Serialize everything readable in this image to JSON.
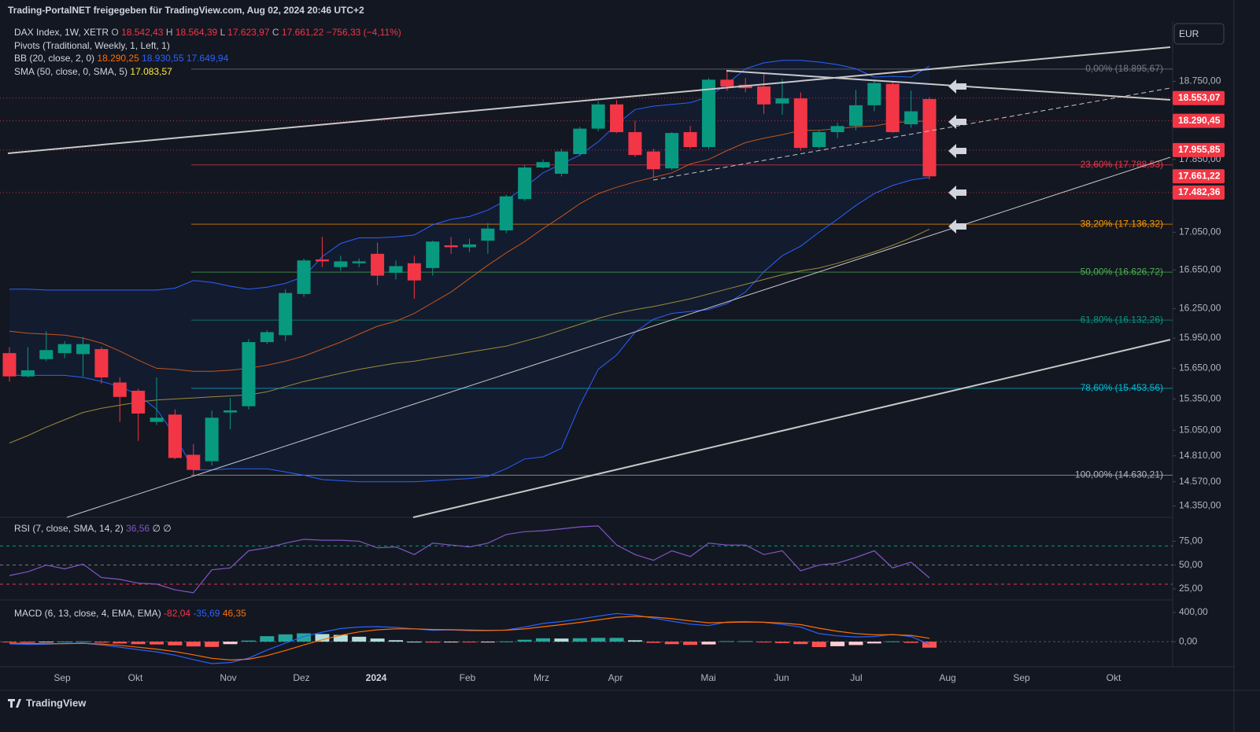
{
  "header": {
    "shared_by": "Trading-PortalNET freigegeben für TradingView.com, Aug 02, 2024 20:46 UTC+2",
    "currency": "EUR",
    "brand": "TradingView"
  },
  "legend": {
    "symbol": "DAX Index, 1W, XETR",
    "ohlc": [
      {
        "key": "O",
        "value": "18.542,43"
      },
      {
        "key": "H",
        "value": "18.564,39"
      },
      {
        "key": "L",
        "value": "17.623,97"
      },
      {
        "key": "C",
        "value": "17.661,22"
      }
    ],
    "change": "−756,33 (−4,11%)",
    "pivots": "Pivots (Traditional, Weekly, 1, Left, 1)",
    "bb": {
      "name": "BB (20, close, 2, 0)",
      "values": [
        "18.290,25",
        "18.930,55",
        "17.649,94"
      ]
    },
    "sma": {
      "name": "SMA (50, close, 0, SMA, 5)",
      "value": "17.083,57"
    }
  },
  "x_labels": [
    "Sep",
    "Okt",
    "Nov",
    "Dez",
    "2024",
    "Feb",
    "Mrz",
    "Apr",
    "Mai",
    "Jun",
    "Jul",
    "Aug",
    "Sep",
    "Okt"
  ],
  "chart_data": [
    {
      "type": "candlestick",
      "log": true,
      "ylim": [
        14247,
        19474
      ],
      "yticks": [
        {
          "value": 18750,
          "label": "18.750,00"
        },
        {
          "value": 17850,
          "label": "17.850,00"
        },
        {
          "value": 17050,
          "label": "17.050,00"
        },
        {
          "value": 16650,
          "label": "16.650,00"
        },
        {
          "value": 16250,
          "label": "16.250,00"
        },
        {
          "value": 15950,
          "label": "15.950,00"
        },
        {
          "value": 15650,
          "label": "15.650,00"
        },
        {
          "value": 15350,
          "label": "15.350,00"
        },
        {
          "value": 15050,
          "label": "15.050,00"
        },
        {
          "value": 14810,
          "label": "14.810,00"
        },
        {
          "value": 14570,
          "label": "14.570,00"
        },
        {
          "value": 14350,
          "label": "14.350,00"
        }
      ],
      "up_color": "#089981",
      "down_color": "#f23645",
      "open": [
        15800,
        15570,
        15740,
        15800,
        15790,
        15840,
        15510,
        15430,
        15130,
        15200,
        14820,
        14760,
        15220,
        15280,
        15910,
        15980,
        16400,
        16760,
        16680,
        16720,
        16820,
        16620,
        16720,
        16670,
        16910,
        16890,
        16960,
        17070,
        17410,
        17760,
        17690,
        17910,
        18200,
        18480,
        18160,
        17940,
        17750,
        18160,
        17990,
        18770,
        18710,
        18690,
        18490,
        18550,
        17990,
        18160,
        18230,
        18470,
        18720,
        18250,
        18542.43
      ],
      "high": [
        15860,
        15860,
        16020,
        15920,
        15960,
        15860,
        15560,
        15450,
        15560,
        15250,
        14920,
        15240,
        15360,
        15940,
        16030,
        16450,
        16770,
        17000,
        16800,
        16770,
        16940,
        16750,
        16800,
        16960,
        17000,
        16980,
        17150,
        17460,
        17790,
        17850,
        17970,
        18220,
        18520,
        18530,
        18290,
        17970,
        18160,
        18230,
        18790,
        18870,
        18790,
        18840,
        18780,
        18620,
        18180,
        18270,
        18650,
        18760,
        18750,
        18640,
        18564.39
      ],
      "low": [
        15520,
        15560,
        15720,
        15750,
        15570,
        15500,
        15130,
        14950,
        15100,
        14780,
        14630,
        14720,
        15060,
        15250,
        15890,
        15920,
        16370,
        16680,
        16640,
        16680,
        16490,
        16550,
        16350,
        16590,
        16820,
        16840,
        16820,
        17040,
        17390,
        17750,
        17660,
        17890,
        18170,
        18150,
        17880,
        17650,
        17730,
        17970,
        17970,
        18640,
        18620,
        18370,
        18360,
        17950,
        17970,
        18090,
        18180,
        18400,
        18150,
        18210,
        17623.97
      ],
      "close": [
        15570,
        15630,
        15830,
        15890,
        15890,
        15560,
        15370,
        15210,
        15170,
        14790,
        14680,
        15170,
        15240,
        15910,
        16010,
        16410,
        16750,
        16740,
        16740,
        16740,
        16590,
        16690,
        16540,
        16950,
        16890,
        16920,
        17090,
        17440,
        17760,
        17820,
        17940,
        18200,
        18480,
        18160,
        17900,
        17740,
        18150,
        17990,
        18770,
        18690,
        18670,
        18480,
        18550,
        17980,
        18160,
        18230,
        18470,
        18730,
        18160,
        18400,
        17661.22
      ],
      "last_price_label": "17.661,22",
      "series": [
        {
          "name": "BB upper",
          "color": "#2962ff",
          "values": [
            16450,
            16450,
            16440,
            16440,
            16440,
            16440,
            16440,
            16440,
            16440,
            16460,
            16540,
            16520,
            16480,
            16450,
            16470,
            16510,
            16580,
            16790,
            16930,
            16990,
            16990,
            17000,
            17020,
            17130,
            17190,
            17220,
            17290,
            17400,
            17540,
            17700,
            17800,
            17900,
            18050,
            18250,
            18420,
            18460,
            18480,
            18500,
            18570,
            18720,
            18900,
            18970,
            19000,
            19000,
            18980,
            18950,
            18900,
            18800,
            18810,
            18800,
            18930.55
          ]
        },
        {
          "name": "BB basis",
          "color": "#c2571a",
          "values": [
            16020,
            16000,
            15990,
            15980,
            15950,
            15900,
            15820,
            15730,
            15650,
            15640,
            15620,
            15620,
            15630,
            15650,
            15680,
            15720,
            15770,
            15840,
            15910,
            15990,
            16070,
            16120,
            16200,
            16310,
            16420,
            16560,
            16700,
            16830,
            16950,
            17090,
            17220,
            17360,
            17470,
            17540,
            17600,
            17650,
            17700,
            17800,
            17850,
            17950,
            18040,
            18090,
            18130,
            18180,
            18180,
            18200,
            18220,
            18230,
            18270,
            18280,
            18290.25
          ]
        },
        {
          "name": "BB lower",
          "color": "#2962ff",
          "values": [
            15580,
            15580,
            15580,
            15580,
            15560,
            15520,
            15470,
            15390,
            15250,
            15000,
            14680,
            14680,
            14690,
            14690,
            14690,
            14660,
            14630,
            14590,
            14580,
            14570,
            14570,
            14570,
            14570,
            14580,
            14590,
            14600,
            14620,
            14690,
            14780,
            14800,
            14880,
            15290,
            15640,
            15780,
            16010,
            16140,
            16200,
            16220,
            16240,
            16300,
            16420,
            16630,
            16800,
            16900,
            17050,
            17190,
            17340,
            17470,
            17560,
            17620,
            17649.94
          ]
        },
        {
          "name": "SMA",
          "color": "#9c8b3a",
          "values": [
            14930,
            15000,
            15080,
            15150,
            15220,
            15260,
            15290,
            15320,
            15340,
            15350,
            15360,
            15370,
            15380,
            15390,
            15420,
            15470,
            15520,
            15560,
            15600,
            15640,
            15670,
            15700,
            15720,
            15750,
            15780,
            15810,
            15840,
            15870,
            15920,
            15970,
            16030,
            16090,
            16150,
            16200,
            16240,
            16270,
            16310,
            16350,
            16400,
            16450,
            16500,
            16550,
            16600,
            16640,
            16670,
            16720,
            16780,
            16840,
            16910,
            16990,
            17083.57
          ]
        }
      ],
      "pivots": [
        {
          "value": 18553.07,
          "label": "18.553,07"
        },
        {
          "value": 18290.45,
          "label": "18.290,45"
        },
        {
          "value": 17955.85,
          "label": "17.955,85"
        },
        {
          "value": 17482.36,
          "label": "17.482,36"
        }
      ],
      "fib": [
        {
          "value": 18895.67,
          "label": "0,00% (18.895,67)",
          "color": "#787b86"
        },
        {
          "value": 17788.53,
          "label": "23,60% (17.788,53)",
          "color": "#f23645"
        },
        {
          "value": 17136.32,
          "label": "38,20% (17.136,32)",
          "color": "#ff9800"
        },
        {
          "value": 16626.72,
          "label": "50,00% (16.626,72)",
          "color": "#4caf50"
        },
        {
          "value": 16132.26,
          "label": "61,80% (16.132,26)",
          "color": "#089981"
        },
        {
          "value": 15453.56,
          "label": "78,60% (15.453,56)",
          "color": "#00bcd4"
        },
        {
          "value": 14630.21,
          "label": "100,00% (14.630,21)",
          "color": "#b2b5be"
        }
      ]
    },
    {
      "type": "line",
      "title": "RSI (7, close, SMA, 14, 2)",
      "value_label": "36,56",
      "extra": "∅ ∅",
      "ylim": [
        14.3,
        100
      ],
      "yticks": [
        {
          "value": 75,
          "label": "75,00"
        },
        {
          "value": 50,
          "label": "50,00"
        },
        {
          "value": 25,
          "label": "25,00"
        }
      ],
      "bands": [
        {
          "value": 70,
          "color": "#089981"
        },
        {
          "value": 50,
          "color": "#787b86"
        },
        {
          "value": 30,
          "color": "#f23645"
        }
      ],
      "series": [
        {
          "name": "RSI",
          "color": "#7e57c2",
          "values": [
            39,
            43,
            50,
            46,
            51,
            37,
            35,
            31,
            30,
            24,
            21,
            45,
            47,
            65,
            68,
            73,
            77,
            76,
            76,
            75,
            68,
            69,
            61,
            73,
            71,
            69,
            73,
            82,
            85,
            86,
            88,
            90,
            91,
            71,
            61,
            55,
            65,
            59,
            73,
            71,
            71,
            61,
            65,
            44,
            50,
            52,
            58,
            65,
            47,
            53,
            36.56
          ]
        }
      ]
    },
    {
      "type": "macd",
      "title": "MACD (6, 13, close, 4, EMA, EMA)",
      "value_labels": [
        "-82,04",
        "-35,69",
        "46,35"
      ],
      "ylim": [
        -343,
        571
      ],
      "yticks": [
        {
          "value": 400,
          "label": "400,00"
        },
        {
          "value": 0,
          "label": "0,00"
        }
      ],
      "histogram": [
        -10,
        -13,
        -7,
        2,
        4,
        -13,
        -25,
        -34,
        -38,
        -50,
        -65,
        -72,
        -34,
        15,
        75,
        100,
        114,
        104,
        92,
        67,
        43,
        20,
        0,
        -12,
        -4,
        -8,
        -5,
        3,
        26,
        46,
        43,
        47,
        52,
        52,
        19,
        -16,
        -34,
        -44,
        -38,
        7,
        7,
        -1,
        -19,
        -33,
        -74,
        -62,
        -46,
        -24,
        4,
        -16,
        -82.04
      ],
      "series": [
        {
          "name": "MACD",
          "color": "#2962ff",
          "values": [
            -30,
            -38,
            -35,
            -25,
            -20,
            -45,
            -75,
            -110,
            -140,
            -185,
            -245,
            -300,
            -285,
            -225,
            -115,
            -20,
            70,
            130,
            180,
            200,
            205,
            195,
            175,
            155,
            160,
            150,
            150,
            160,
            200,
            250,
            275,
            310,
            350,
            385,
            365,
            320,
            280,
            240,
            220,
            270,
            275,
            265,
            235,
            200,
            110,
            80,
            65,
            70,
            100,
            70,
            -35.69
          ]
        },
        {
          "name": "Signal",
          "color": "#ff6d00",
          "values": [
            -20,
            -25,
            -28,
            -27,
            -24,
            -32,
            -50,
            -76,
            -102,
            -135,
            -180,
            -228,
            -251,
            -240,
            -190,
            -120,
            -44,
            26,
            88,
            133,
            162,
            175,
            175,
            167,
            164,
            158,
            155,
            157,
            174,
            204,
            232,
            263,
            298,
            333,
            346,
            336,
            314,
            284,
            258,
            263,
            268,
            266,
            254,
            233,
            184,
            142,
            111,
            94,
            96,
            86,
            46.35
          ]
        }
      ]
    }
  ]
}
